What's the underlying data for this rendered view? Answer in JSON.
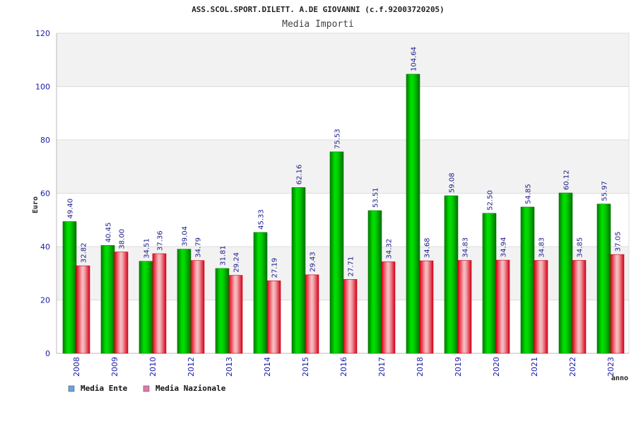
{
  "chart_data": {
    "type": "bar",
    "title": "ASS.SCOL.SPORT.DILETT. A.DE GIOVANNI (c.f.92003720205)",
    "subtitle": "Media Importi",
    "xlabel": "anno",
    "ylabel": "Euro",
    "ylim": [
      0,
      120
    ],
    "yticks": [
      "0",
      "20",
      "40",
      "60",
      "80",
      "100",
      "120"
    ],
    "grid": true,
    "legend_position": "bottom-left",
    "categories": [
      "2008",
      "2009",
      "2010",
      "2012",
      "2013",
      "2014",
      "2015",
      "2016",
      "2017",
      "2018",
      "2019",
      "2020",
      "2021",
      "2022",
      "2023"
    ],
    "series": [
      {
        "name": "Media Ente",
        "color": "#00c800",
        "legend_color": "#66a3e0",
        "values": [
          49.4,
          40.45,
          34.51,
          39.04,
          31.81,
          45.33,
          62.16,
          75.53,
          53.51,
          104.64,
          59.08,
          52.5,
          54.85,
          60.12,
          55.97
        ],
        "labels": [
          "49.40",
          "40.45",
          "34.51",
          "39.04",
          "31.81",
          "45.33",
          "62.16",
          "75.53",
          "53.51",
          "104.64",
          "59.08",
          "52.50",
          "54.85",
          "60.12",
          "55.97"
        ]
      },
      {
        "name": "Media Nazionale",
        "color": "#e8323c",
        "legend_color": "#e07aa8",
        "values": [
          32.82,
          38.0,
          37.36,
          34.79,
          29.24,
          27.19,
          29.43,
          27.71,
          34.32,
          34.68,
          34.83,
          34.94,
          34.83,
          34.85,
          37.05
        ],
        "labels": [
          "32.82",
          "38.00",
          "37.36",
          "34.79",
          "29.24",
          "27.19",
          "29.43",
          "27.71",
          "34.32",
          "34.68",
          "34.83",
          "34.94",
          "34.83",
          "34.85",
          "37.05"
        ]
      }
    ]
  }
}
